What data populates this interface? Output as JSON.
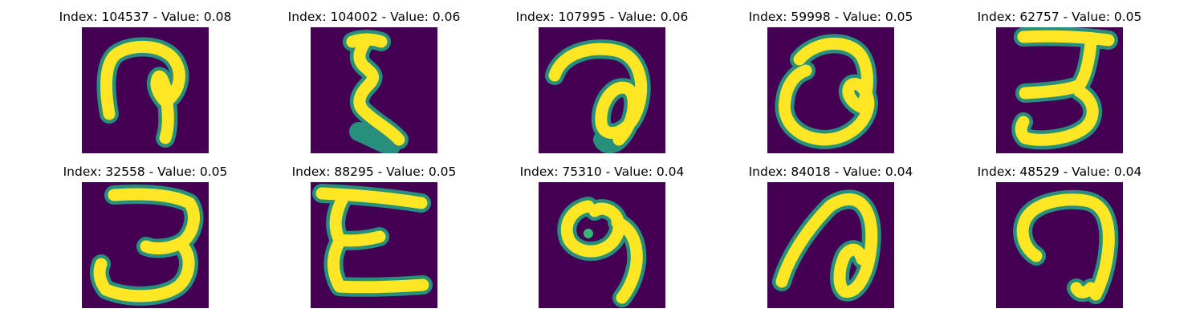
{
  "colors": {
    "background": "#440154",
    "stroke_core": "#fde725",
    "stroke_edge": "#22a884",
    "stroke_mid": "#35b779"
  },
  "panels": [
    {
      "title": "Index: 104537 - Value: 0.08",
      "index": 104537,
      "value": 0.08
    },
    {
      "title": "Index: 104002 - Value: 0.06",
      "index": 104002,
      "value": 0.06
    },
    {
      "title": "Index: 107995 - Value: 0.06",
      "index": 107995,
      "value": 0.06
    },
    {
      "title": "Index: 59998 - Value: 0.05",
      "index": 59998,
      "value": 0.05
    },
    {
      "title": "Index: 62757 - Value: 0.05",
      "index": 62757,
      "value": 0.05
    },
    {
      "title": "Index: 32558 - Value: 0.05",
      "index": 32558,
      "value": 0.05
    },
    {
      "title": "Index: 88295 - Value: 0.05",
      "index": 88295,
      "value": 0.05
    },
    {
      "title": "Index: 75310 - Value: 0.04",
      "index": 75310,
      "value": 0.04
    },
    {
      "title": "Index: 84018 - Value: 0.04",
      "index": 84018,
      "value": 0.04
    },
    {
      "title": "Index: 48529 - Value: 0.04",
      "index": 48529,
      "value": 0.04
    }
  ]
}
